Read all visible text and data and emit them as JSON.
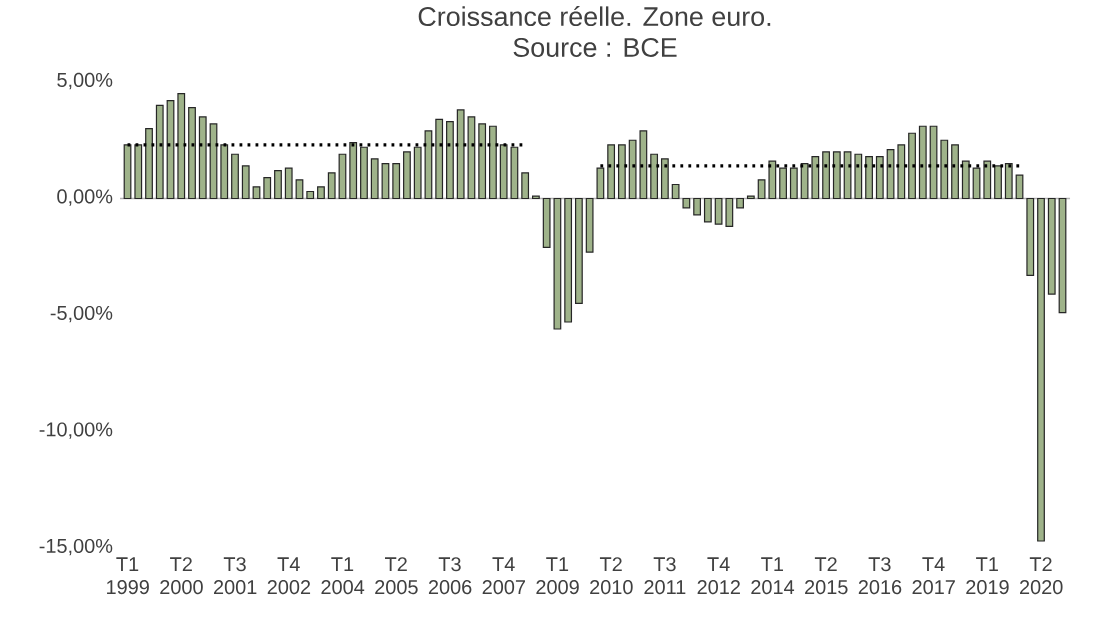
{
  "chart_data": {
    "type": "bar",
    "title": "Croissance réelle. Zone euro.",
    "subtitle": "Source : BCE",
    "categories": [
      "T1 1999",
      null,
      null,
      null,
      null,
      "T2 2000",
      null,
      null,
      null,
      null,
      "T3 2001",
      null,
      null,
      null,
      null,
      "T4 2002",
      null,
      null,
      null,
      null,
      "T1 2004",
      null,
      null,
      null,
      null,
      "T2 2005",
      null,
      null,
      null,
      null,
      "T3 2006",
      null,
      null,
      null,
      null,
      "T4 2007",
      null,
      null,
      null,
      null,
      "T1 2009",
      null,
      null,
      null,
      null,
      "T2 2010",
      null,
      null,
      null,
      null,
      "T3 2011",
      null,
      null,
      null,
      null,
      "T4 2012",
      null,
      null,
      null,
      null,
      "T1 2014",
      null,
      null,
      null,
      null,
      "T2 2015",
      null,
      null,
      null,
      null,
      "T3 2016",
      null,
      null,
      null,
      null,
      "T4 2017",
      null,
      null,
      null,
      null,
      "T1 2019",
      null,
      null,
      null,
      null,
      "T2 2020",
      null,
      null
    ],
    "series": [
      {
        "type": "bar",
        "color": "#9fb38a",
        "values": [
          2.3,
          2.3,
          3.0,
          4.0,
          4.2,
          4.5,
          3.9,
          3.5,
          3.2,
          2.3,
          1.9,
          1.4,
          0.5,
          0.9,
          1.2,
          1.3,
          0.8,
          0.3,
          0.5,
          1.1,
          1.9,
          2.4,
          2.2,
          1.7,
          1.5,
          1.5,
          2.0,
          2.2,
          2.9,
          3.4,
          3.3,
          3.8,
          3.5,
          3.2,
          3.1,
          2.3,
          2.2,
          1.1,
          0.1,
          -2.1,
          -5.6,
          -5.3,
          -4.5,
          -2.3,
          1.3,
          2.3,
          2.3,
          2.5,
          2.9,
          1.9,
          1.7,
          0.6,
          -0.4,
          -0.7,
          -1.0,
          -1.1,
          -1.2,
          -0.4,
          0.1,
          0.8,
          1.6,
          1.3,
          1.3,
          1.5,
          1.8,
          2.0,
          2.0,
          2.0,
          1.9,
          1.8,
          1.8,
          2.1,
          2.3,
          2.8,
          3.1,
          3.1,
          2.5,
          2.3,
          1.6,
          1.3,
          1.6,
          1.4,
          1.5,
          1.0,
          -3.3,
          -14.7,
          -4.1,
          -4.9
        ]
      },
      {
        "type": "line",
        "color": "#000000",
        "line_style": "dotted",
        "values": [
          2.3,
          2.3,
          2.3,
          2.3,
          2.3,
          2.3,
          2.3,
          2.3,
          2.3,
          2.3,
          2.3,
          2.3,
          2.3,
          2.3,
          2.3,
          2.3,
          2.3,
          2.3,
          2.3,
          2.3,
          2.3,
          2.3,
          2.3,
          2.3,
          2.3,
          2.3,
          2.3,
          2.3,
          2.3,
          2.3,
          2.3,
          2.3,
          2.3,
          2.3,
          2.3,
          2.3,
          2.3,
          2.3,
          null,
          null,
          null,
          null,
          null,
          null,
          null,
          null,
          null,
          null,
          null,
          null,
          null,
          null,
          null,
          null,
          null,
          null,
          null,
          null,
          null,
          null,
          null,
          null,
          null,
          null,
          null,
          null,
          null,
          null,
          null,
          null,
          null,
          null,
          null,
          null,
          null,
          null,
          null,
          null,
          null,
          null,
          null,
          null,
          null,
          null,
          null,
          null,
          null,
          null
        ]
      },
      {
        "type": "line",
        "color": "#000000",
        "line_style": "dotted",
        "values": [
          null,
          null,
          null,
          null,
          null,
          null,
          null,
          null,
          null,
          null,
          null,
          null,
          null,
          null,
          null,
          null,
          null,
          null,
          null,
          null,
          null,
          null,
          null,
          null,
          null,
          null,
          null,
          null,
          null,
          null,
          null,
          null,
          null,
          null,
          null,
          null,
          null,
          null,
          null,
          null,
          null,
          null,
          null,
          null,
          1.4,
          1.4,
          1.4,
          1.4,
          1.4,
          1.4,
          1.4,
          1.4,
          1.4,
          1.4,
          1.4,
          1.4,
          1.4,
          1.4,
          1.4,
          1.4,
          1.4,
          1.4,
          1.4,
          1.4,
          1.4,
          1.4,
          1.4,
          1.4,
          1.4,
          1.4,
          1.4,
          1.4,
          1.4,
          1.4,
          1.4,
          1.4,
          1.4,
          1.4,
          1.4,
          1.4,
          1.4,
          1.4,
          1.4,
          1.4,
          null,
          null,
          null,
          null
        ]
      }
    ],
    "ylim": [
      -15,
      5
    ],
    "yticks": [
      {
        "value": -15,
        "label": "-15,00%"
      },
      {
        "value": -10,
        "label": "-10,00%"
      },
      {
        "value": -5,
        "label": "-5,00%"
      },
      {
        "value": 0,
        "label": "0,00%"
      },
      {
        "value": 5,
        "label": "5,00%"
      }
    ],
    "marker": "none"
  }
}
